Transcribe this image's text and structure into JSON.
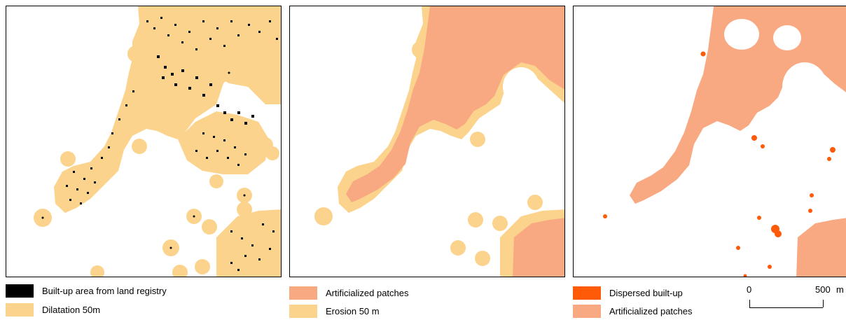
{
  "colors": {
    "builtup": "#000000",
    "dilatation": "#fbd38c",
    "artificialized": "#f9a982",
    "dispersed": "#fe5a08"
  },
  "panels": [
    {
      "legend": [
        {
          "label": "Built-up area from land registry",
          "color": "#000000"
        },
        {
          "label": "Dilatation 50m",
          "color": "#fbd38c"
        }
      ]
    },
    {
      "legend": [
        {
          "label": "Artificialized patches",
          "color": "#f9a982"
        },
        {
          "label": "Erosion 50 m",
          "color": "#fbd38c"
        }
      ]
    },
    {
      "legend": [
        {
          "label": "Dispersed built-up",
          "color": "#fe5a08"
        },
        {
          "label": "Artificialized patches",
          "color": "#f9a982"
        }
      ]
    }
  ],
  "scale": {
    "start_label": "0",
    "end_label": "500",
    "unit": "m"
  }
}
